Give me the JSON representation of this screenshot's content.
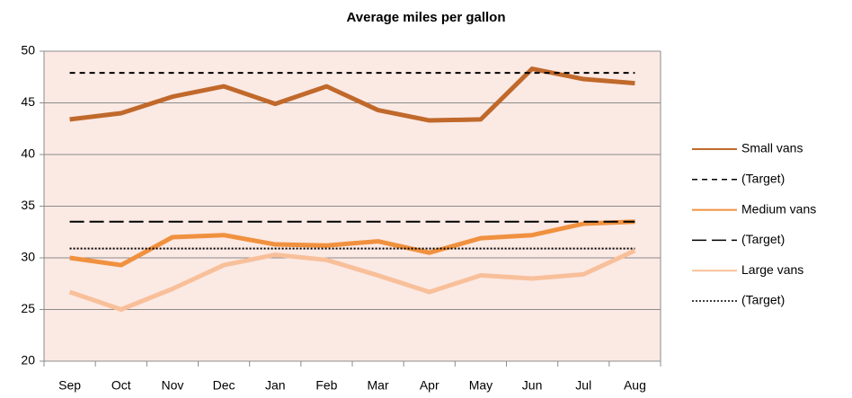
{
  "chart_data": {
    "type": "line",
    "title": "Average miles per gallon",
    "categories": [
      "Sep",
      "Oct",
      "Nov",
      "Dec",
      "Jan",
      "Feb",
      "Mar",
      "Apr",
      "May",
      "Jun",
      "Jul",
      "Aug"
    ],
    "series": [
      {
        "name": "Small vans",
        "color": "#c0692b",
        "values": [
          43.4,
          44.0,
          45.6,
          46.6,
          44.9,
          46.6,
          44.3,
          43.3,
          43.4,
          48.3,
          47.3,
          46.9
        ]
      },
      {
        "name": "(Target)",
        "color": "#000000",
        "dash": "short",
        "values": [
          47.9,
          47.9,
          47.9,
          47.9,
          47.9,
          47.9,
          47.9,
          47.9,
          47.9,
          47.9,
          47.9,
          47.9
        ]
      },
      {
        "name": "Medium vans",
        "color": "#f0913f",
        "values": [
          30.0,
          29.3,
          32.0,
          32.2,
          31.3,
          31.2,
          31.6,
          30.5,
          31.9,
          32.2,
          33.3,
          33.5
        ]
      },
      {
        "name": "(Target)",
        "color": "#000000",
        "dash": "long",
        "values": [
          33.5,
          33.5,
          33.5,
          33.5,
          33.5,
          33.5,
          33.5,
          33.5,
          33.5,
          33.5,
          33.5,
          33.5
        ]
      },
      {
        "name": "Large vans",
        "color": "#f8c09a",
        "values": [
          26.7,
          25.0,
          27.0,
          29.3,
          30.3,
          29.8,
          28.3,
          26.7,
          28.3,
          28.0,
          28.4,
          30.7
        ]
      },
      {
        "name": "(Target)",
        "color": "#000000",
        "dash": "dot",
        "values": [
          30.9,
          30.9,
          30.9,
          30.9,
          30.9,
          30.9,
          30.9,
          30.9,
          30.9,
          30.9,
          30.9,
          30.9
        ]
      }
    ],
    "ylim": [
      20,
      50
    ],
    "yticks": [
      20,
      25,
      30,
      35,
      40,
      45,
      50
    ],
    "grid": true,
    "legend": "right",
    "plot_background": "#fbe9e4"
  }
}
